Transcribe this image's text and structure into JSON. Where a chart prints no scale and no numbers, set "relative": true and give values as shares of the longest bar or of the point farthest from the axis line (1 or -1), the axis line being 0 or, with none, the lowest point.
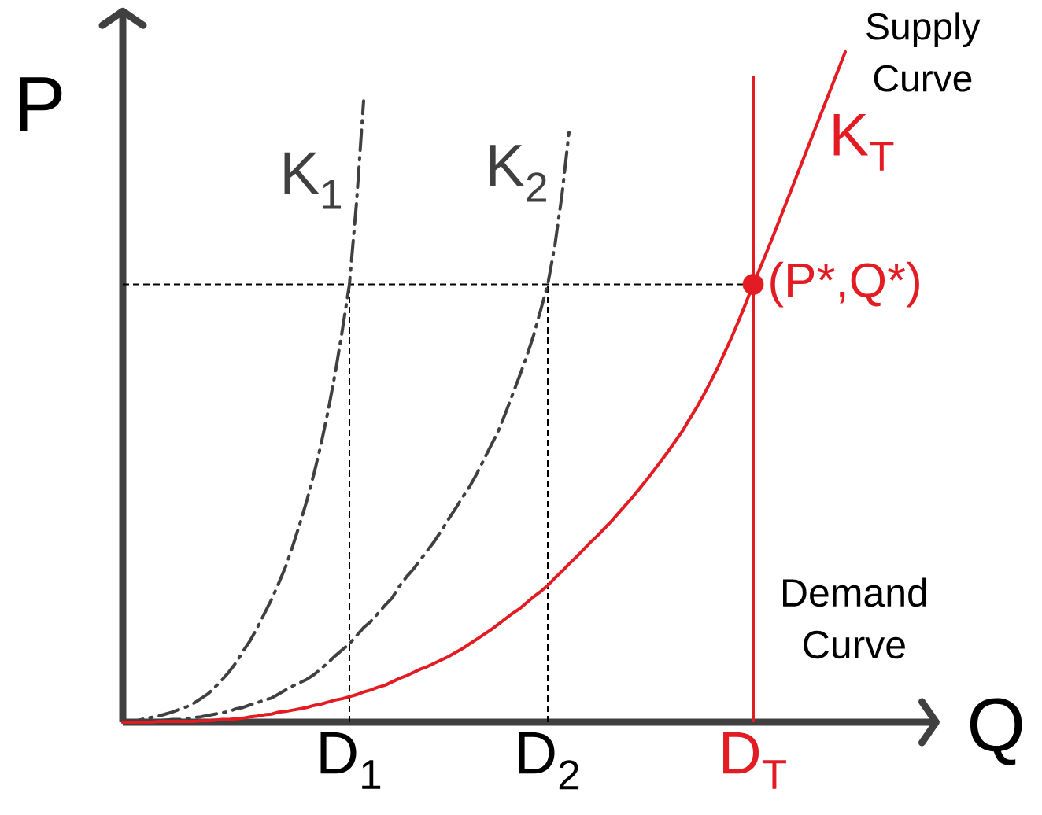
{
  "chart_data": {
    "type": "line",
    "relative": true,
    "xlabel": "Q",
    "ylabel": "P",
    "categories": [
      null,
      null,
      null,
      null,
      null,
      null,
      null,
      null,
      null,
      null,
      null,
      null,
      null,
      null,
      null,
      null,
      null,
      null,
      null,
      null,
      null,
      null,
      null,
      null,
      null,
      null,
      null,
      null,
      null,
      null,
      null,
      null,
      "D$_{1}$",
      null,
      null,
      null,
      null,
      null,
      null,
      null,
      null,
      null,
      null,
      null,
      null,
      null,
      null,
      null,
      null,
      null,
      null,
      null,
      null,
      null,
      null,
      null,
      null,
      null,
      null,
      null,
      "D$_{2}$",
      null,
      null,
      null,
      null,
      null,
      null,
      null,
      null,
      null,
      null,
      null,
      null,
      null,
      null,
      null,
      null,
      null,
      null,
      null,
      null,
      null,
      null,
      null,
      null,
      null,
      null,
      null,
      null,
      "D$_{T}$",
      null,
      null,
      null,
      null,
      null,
      null,
      null,
      null,
      null,
      null,
      null,
      null,
      null
    ],
    "series": [
      {
        "name": "K$_{1}$",
        "color": "#404040",
        "line_style": "dashdot",
        "values": [
          0,
          0.001,
          0.002,
          0.005,
          0.007,
          0.009,
          0.012,
          0.015,
          0.019,
          0.023,
          0.028,
          0.035,
          0.042,
          0.052,
          0.063,
          0.075,
          0.089,
          0.106,
          0.122,
          0.141,
          0.162,
          0.183,
          0.207,
          0.232,
          0.263,
          0.296,
          0.331,
          0.371,
          0.415,
          0.465,
          0.521,
          0.585,
          0.653,
          0.775,
          0.927,
          null,
          null,
          null,
          null,
          null,
          null,
          null,
          null,
          null,
          null,
          null,
          null,
          null,
          null,
          null,
          null,
          null,
          null,
          null,
          null,
          null,
          null,
          null,
          null,
          null,
          null,
          null,
          null,
          null,
          null,
          null,
          null,
          null,
          null,
          null,
          null,
          null,
          null,
          null,
          null,
          null,
          null,
          null,
          null,
          null,
          null,
          null,
          null,
          null,
          null,
          null,
          null,
          null,
          null,
          null,
          null,
          null,
          null,
          null,
          null,
          null,
          null,
          null,
          null,
          null,
          null,
          null,
          null
        ]
      },
      {
        "name": "K$_{2}$",
        "color": "#404040",
        "line_style": "dashdot",
        "values": [
          0,
          0,
          0.001,
          0.001,
          0.002,
          0.002,
          0.003,
          0.004,
          0.004,
          0.005,
          0.007,
          0.008,
          0.01,
          0.012,
          0.014,
          0.016,
          0.02,
          0.022,
          0.026,
          0.029,
          0.033,
          0.036,
          0.042,
          0.048,
          0.054,
          0.059,
          0.064,
          0.071,
          0.08,
          0.089,
          0.099,
          0.108,
          0.117,
          0.129,
          0.141,
          0.15,
          0.162,
          0.174,
          0.185,
          0.202,
          0.216,
          0.228,
          0.242,
          0.256,
          0.27,
          0.286,
          0.303,
          0.319,
          0.336,
          0.352,
          0.371,
          0.392,
          0.413,
          0.434,
          0.46,
          0.488,
          0.516,
          0.545,
          0.577,
          0.615,
          0.653,
          0.711,
          0.786,
          0.88,
          null,
          null,
          null,
          null,
          null,
          null,
          null,
          null,
          null,
          null,
          null,
          null,
          null,
          null,
          null,
          null,
          null,
          null,
          null,
          null,
          null,
          null,
          null,
          null,
          null,
          null,
          null,
          null,
          null,
          null,
          null,
          null,
          null,
          null,
          null,
          null,
          null,
          null,
          null
        ]
      },
      {
        "name": "K$_{T}$",
        "color": "#e31b23",
        "line_style": "solid",
        "values": [
          0,
          0,
          0,
          0,
          0,
          0.001,
          0.001,
          0.001,
          0.001,
          0.001,
          0.001,
          0.002,
          0.002,
          0.003,
          0.004,
          0.004,
          0.005,
          0.006,
          0.008,
          0.009,
          0.011,
          0.012,
          0.015,
          0.016,
          0.018,
          0.02,
          0.022,
          0.025,
          0.027,
          0.03,
          0.033,
          0.035,
          0.038,
          0.041,
          0.045,
          0.048,
          0.052,
          0.055,
          0.06,
          0.065,
          0.069,
          0.074,
          0.079,
          0.083,
          0.088,
          0.093,
          0.098,
          0.104,
          0.11,
          0.117,
          0.124,
          0.131,
          0.138,
          0.146,
          0.154,
          0.162,
          0.169,
          0.178,
          0.187,
          0.195,
          0.204,
          0.215,
          0.225,
          0.236,
          0.246,
          0.257,
          0.268,
          0.278,
          0.289,
          0.3,
          0.312,
          0.324,
          0.336,
          0.349,
          0.362,
          0.376,
          0.39,
          0.404,
          0.419,
          0.434,
          0.452,
          0.469,
          0.488,
          0.508,
          0.529,
          0.552,
          0.575,
          0.6,
          0.626,
          0.653,
          0.678,
          0.704,
          0.73,
          0.757,
          0.784,
          0.811,
          0.838,
          0.865,
          0.892,
          0.919,
          0.946,
          0.973,
          1
        ]
      },
      {
        "name": "(P*,Q*)",
        "type": "scatter",
        "marker": "circle",
        "color": "#e31b23",
        "x": [
          "D$_{T}$"
        ],
        "values": [
          0.653
        ]
      }
    ],
    "ref_lines": [
      {
        "axis": "x",
        "value": "D$_{1}$",
        "line_style": "dashed",
        "color": "#000000"
      },
      {
        "axis": "x",
        "value": "D$_{2}$",
        "line_style": "dashed",
        "color": "#000000"
      },
      {
        "axis": "y",
        "value": 0.653,
        "line_style": "dashed",
        "color": "#000000"
      },
      {
        "axis": "x",
        "value": "D$_{T}$",
        "label": "Demand Curve",
        "line_style": "solid",
        "color": "#e31b23"
      }
    ],
    "annotations": [
      "Supply Curve"
    ]
  }
}
